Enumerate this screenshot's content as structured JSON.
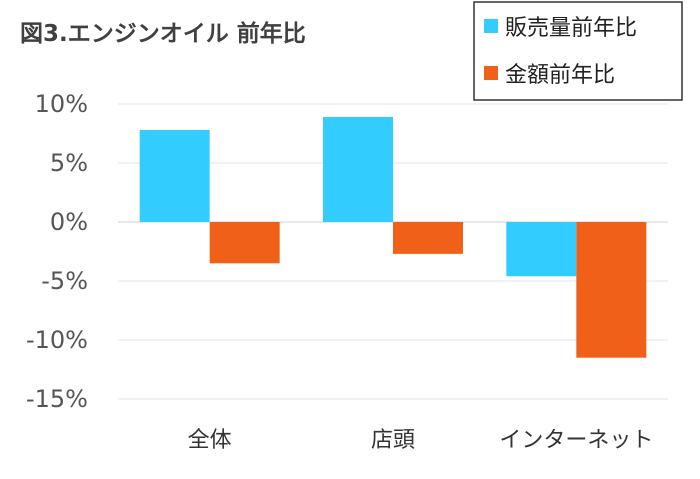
{
  "chart_data": {
    "type": "bar",
    "title": "図3.エンジンオイル 前年比",
    "categories": [
      "全体",
      "店頭",
      "インターネット"
    ],
    "series": [
      {
        "name": "販売量前年比",
        "color": "#33CCFF",
        "values": [
          7.8,
          8.9,
          -4.6
        ]
      },
      {
        "name": "金額前年比",
        "color": "#F06019",
        "values": [
          -3.5,
          -2.7,
          -11.5
        ]
      }
    ],
    "ylim": [
      -15,
      10
    ],
    "yticks": [
      10,
      5,
      0,
      -5,
      -10,
      -15
    ],
    "ytick_labels": [
      "10%",
      "5%",
      "0%",
      "-5%",
      "-10%",
      "-15%"
    ],
    "grid": true,
    "legend_position": "top-right",
    "xlabel": "",
    "ylabel": ""
  }
}
